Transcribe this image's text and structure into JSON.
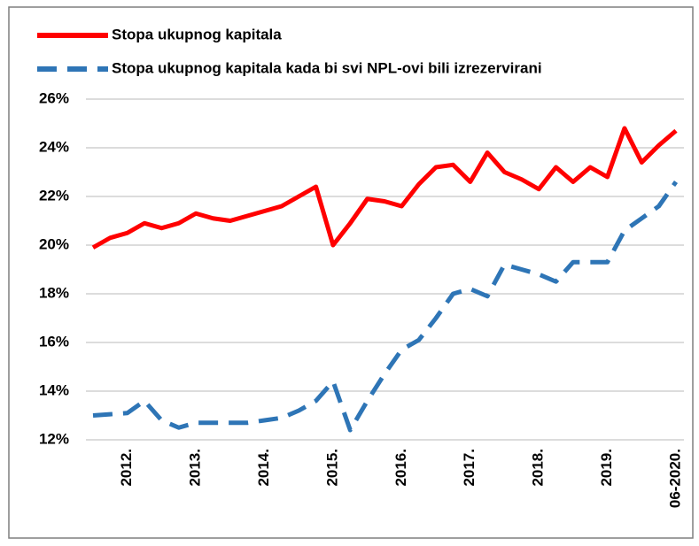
{
  "chart_data": {
    "type": "line",
    "categories": [
      null,
      null,
      "2012.",
      null,
      null,
      null,
      "2013.",
      null,
      null,
      null,
      "2014.",
      null,
      null,
      null,
      "2015.",
      null,
      null,
      null,
      "2016.",
      null,
      null,
      null,
      "2017.",
      null,
      null,
      null,
      "2018.",
      null,
      null,
      null,
      "2019.",
      null,
      null,
      null,
      "06-2020."
    ],
    "series": [
      {
        "name": "Stopa ukupnog kapitala",
        "color": "#ff0000",
        "dash": false,
        "values": [
          19.9,
          20.3,
          20.5,
          20.9,
          20.7,
          20.9,
          21.3,
          21.1,
          21.0,
          21.2,
          21.4,
          21.6,
          22.0,
          22.4,
          20.0,
          20.9,
          21.9,
          21.8,
          21.6,
          22.5,
          23.2,
          23.3,
          22.6,
          23.8,
          23.0,
          22.7,
          22.3,
          23.2,
          22.6,
          23.2,
          22.8,
          24.8,
          23.4,
          24.1,
          24.7
        ]
      },
      {
        "name": "Stopa ukupnog kapitala kada bi svi NPL-ovi bili izrezervirani",
        "color": "#2e75b6",
        "dash": true,
        "values": [
          13.0,
          13.05,
          13.1,
          13.6,
          12.8,
          12.5,
          12.7,
          12.7,
          12.7,
          12.7,
          12.8,
          12.9,
          13.2,
          13.6,
          14.4,
          12.4,
          13.6,
          14.7,
          15.7,
          16.1,
          17.0,
          18.0,
          18.2,
          17.9,
          19.2,
          19.0,
          18.8,
          18.5,
          19.3,
          19.3,
          19.3,
          20.6,
          21.1,
          21.6,
          22.6
        ]
      }
    ],
    "ylim": [
      12,
      26
    ],
    "yticks": [
      {
        "value": 12,
        "label": "12%"
      },
      {
        "value": 14,
        "label": "14%"
      },
      {
        "value": 16,
        "label": "16%"
      },
      {
        "value": 18,
        "label": "18%"
      },
      {
        "value": 20,
        "label": "20%"
      },
      {
        "value": 22,
        "label": "22%"
      },
      {
        "value": 24,
        "label": "24%"
      },
      {
        "value": 26,
        "label": "26%"
      }
    ],
    "grid": true,
    "legend": "top-left"
  }
}
